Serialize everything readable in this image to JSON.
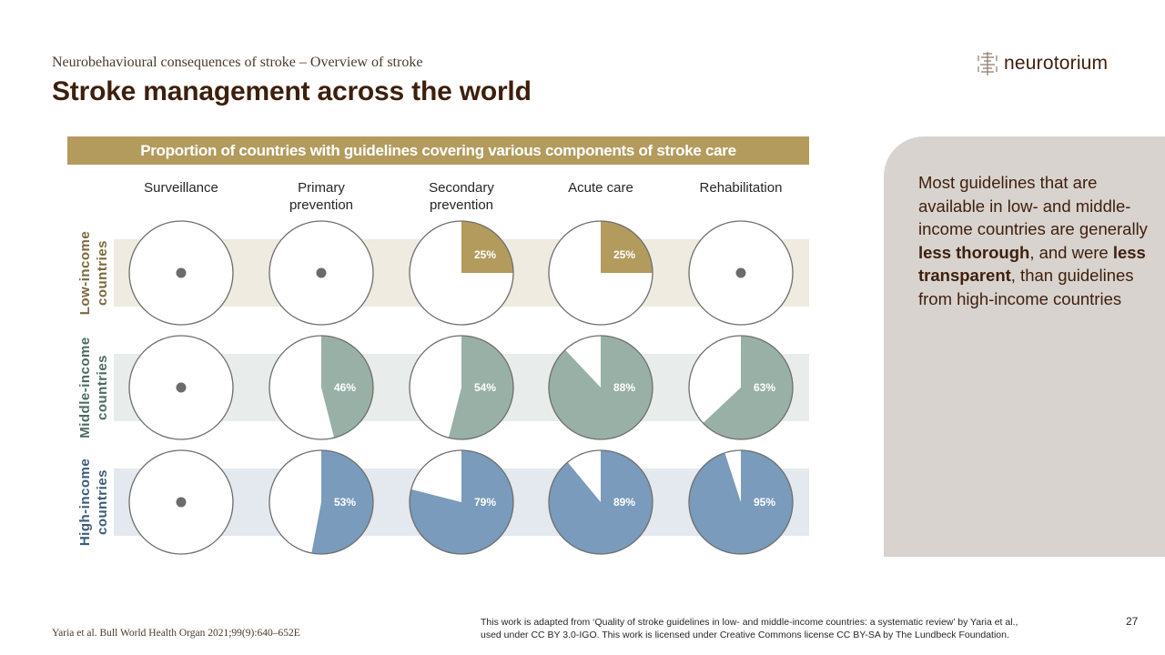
{
  "header": {
    "breadcrumb": "Neurobehavioural  consequences of stroke – Overview  of stroke",
    "title": "Stroke management  across the world",
    "logo_text": "neurotorium",
    "logo_icon": "brain-tree-icon"
  },
  "side_panel": {
    "text_parts": [
      "Most guidelines  that are available in low- and middle-income  countries are generally ",
      "less thorough",
      ", and were ",
      "less transparent",
      ", than guidelines  from high-income  countries"
    ]
  },
  "footer": {
    "citation": "Yaria et al. Bull World Health Organ 2021;99(9):640–652E",
    "license_line1": "This work is adapted from ‘Quality of stroke guidelines in low- and middle-income countries: a systematic review’ by Yaria et al.,",
    "license_line2": "used under CC BY 3.0-IGO.  This work is licensed under Creative Commons license CC BY-SA by The Lundbeck Foundation.",
    "page_number": "27"
  },
  "colors": {
    "header_bar": "#b39b5e",
    "low_fill": "#b39b5e",
    "low_band": "#efebe1",
    "low_label": "#7a6a3e",
    "middle_fill": "#99b0a7",
    "middle_band": "#e8ecea",
    "middle_label": "#4d6b60",
    "high_fill": "#7a9bbb",
    "high_band": "#e4e8ef",
    "high_label": "#3e5a7a",
    "zero_dot": "#6b6b6b",
    "pie_outline": "#6e6e6e"
  },
  "chart_data": {
    "type": "pie",
    "title": "Proportion of countries with guidelines covering various components of stroke care",
    "categories": [
      "Surveillance",
      "Primary\nprevention",
      "Secondary\nprevention",
      "Acute care",
      "Rehabilitation"
    ],
    "category_lines": [
      [
        "Surveillance"
      ],
      [
        "Primary",
        "prevention"
      ],
      [
        "Secondary",
        "prevention"
      ],
      [
        "Acute care"
      ],
      [
        "Rehabilitation"
      ]
    ],
    "series": [
      {
        "name": "Low-income countries",
        "label_lines": [
          "Low-income",
          "countries"
        ],
        "values": [
          0,
          0,
          25,
          25,
          0
        ],
        "labels": [
          "",
          "",
          "25%",
          "25%",
          ""
        ]
      },
      {
        "name": "Middle-income countries",
        "label_lines": [
          "Middle-income",
          "countries"
        ],
        "values": [
          0,
          46,
          54,
          88,
          63
        ],
        "labels": [
          "",
          "46%",
          "54%",
          "88%",
          "63%"
        ]
      },
      {
        "name": "High-income countries",
        "label_lines": [
          "High-income",
          "countries"
        ],
        "values": [
          0,
          53,
          79,
          89,
          95
        ],
        "labels": [
          "",
          "53%",
          "79%",
          "89%",
          "95%"
        ]
      }
    ],
    "units": "%",
    "zero_marker": "dot"
  }
}
